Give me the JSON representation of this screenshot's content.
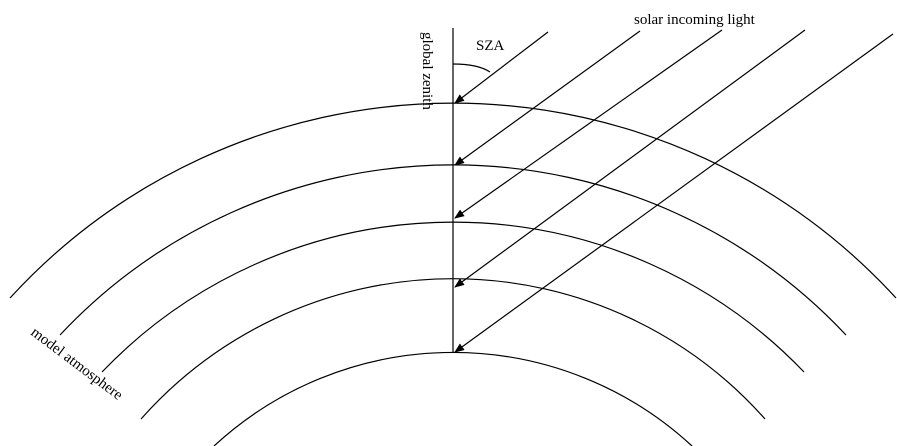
{
  "labels": {
    "angle": "SZA",
    "light": "solar incoming light",
    "zenith": "global zenith",
    "atmosphere": "model atmosphere"
  }
}
